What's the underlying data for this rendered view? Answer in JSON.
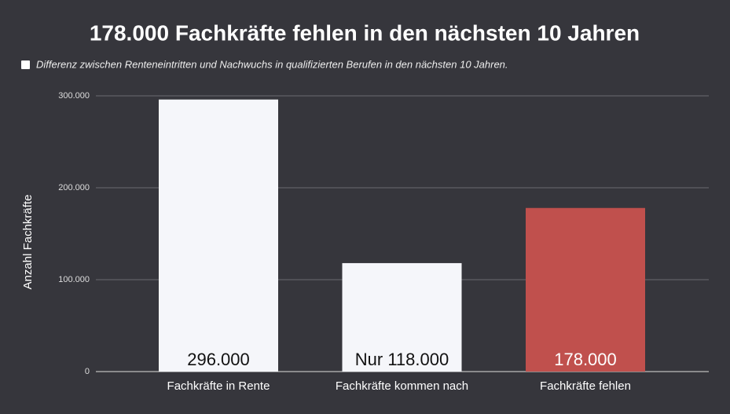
{
  "chart_data": {
    "type": "bar",
    "title": "178.000 Fachkräfte fehlen in den nächsten 10 Jahren",
    "y_label": "Anzahl Fachkräfte",
    "categories": [
      "Fachkräfte in Rente",
      "Fachkräfte kommen nach",
      "Fachkräfte fehlen"
    ],
    "series": [
      {
        "name": "Differenz zwischen Renteneintritten und Nachwuchs in qualifizierten Berufen in den nächsten 10 Jahren.",
        "color": "#ffffff",
        "colors": [
          "#f5f6fa",
          "#f5f6fa",
          "#c0504d"
        ],
        "values": [
          296000,
          118000,
          178000
        ],
        "value_labels": [
          "296.000",
          "Nur 118.000",
          "178.000"
        ]
      }
    ],
    "ylim": [
      0,
      300000
    ],
    "yticks": [
      {
        "value": 0,
        "label": "0"
      },
      {
        "value": 100000,
        "label": "100.000"
      },
      {
        "value": 200000,
        "label": "200.000"
      },
      {
        "value": 300000,
        "label": "300.000"
      }
    ],
    "grid": true
  }
}
